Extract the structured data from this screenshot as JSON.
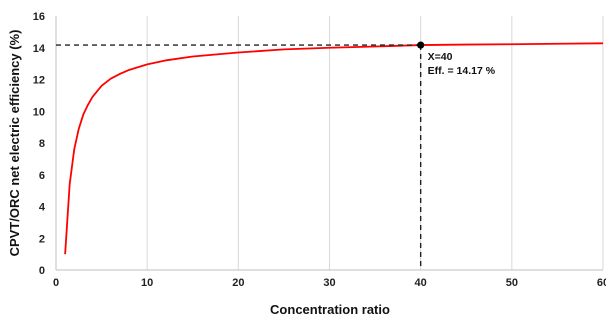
{
  "chart_data": {
    "type": "line",
    "xlabel": "Concentration ratio",
    "ylabel": "CPVT/ORC net electric efficiency (%)",
    "xlim": [
      0,
      60
    ],
    "ylim": [
      0,
      16
    ],
    "xticks": [
      0,
      10,
      20,
      30,
      40,
      50,
      60
    ],
    "yticks": [
      0,
      2,
      4,
      6,
      8,
      10,
      12,
      14,
      16
    ],
    "grid": "vertical",
    "series_color": "#ff0000",
    "series": [
      {
        "x": [
          1,
          1.5,
          2,
          2.5,
          3,
          3.5,
          4,
          5,
          6,
          7,
          8,
          10,
          12,
          15,
          20,
          25,
          30,
          35,
          40,
          45,
          50,
          55,
          60
        ],
        "values": [
          1.0,
          5.4,
          7.6,
          8.9,
          9.8,
          10.4,
          10.9,
          11.6,
          12.05,
          12.35,
          12.6,
          12.95,
          13.2,
          13.45,
          13.7,
          13.9,
          14.0,
          14.08,
          14.17,
          14.2,
          14.22,
          14.25,
          14.28
        ]
      }
    ],
    "annotation": {
      "x": 40,
      "y": 14.17,
      "line1": "X=40",
      "line2": "Eff. = 14.17 %"
    }
  }
}
